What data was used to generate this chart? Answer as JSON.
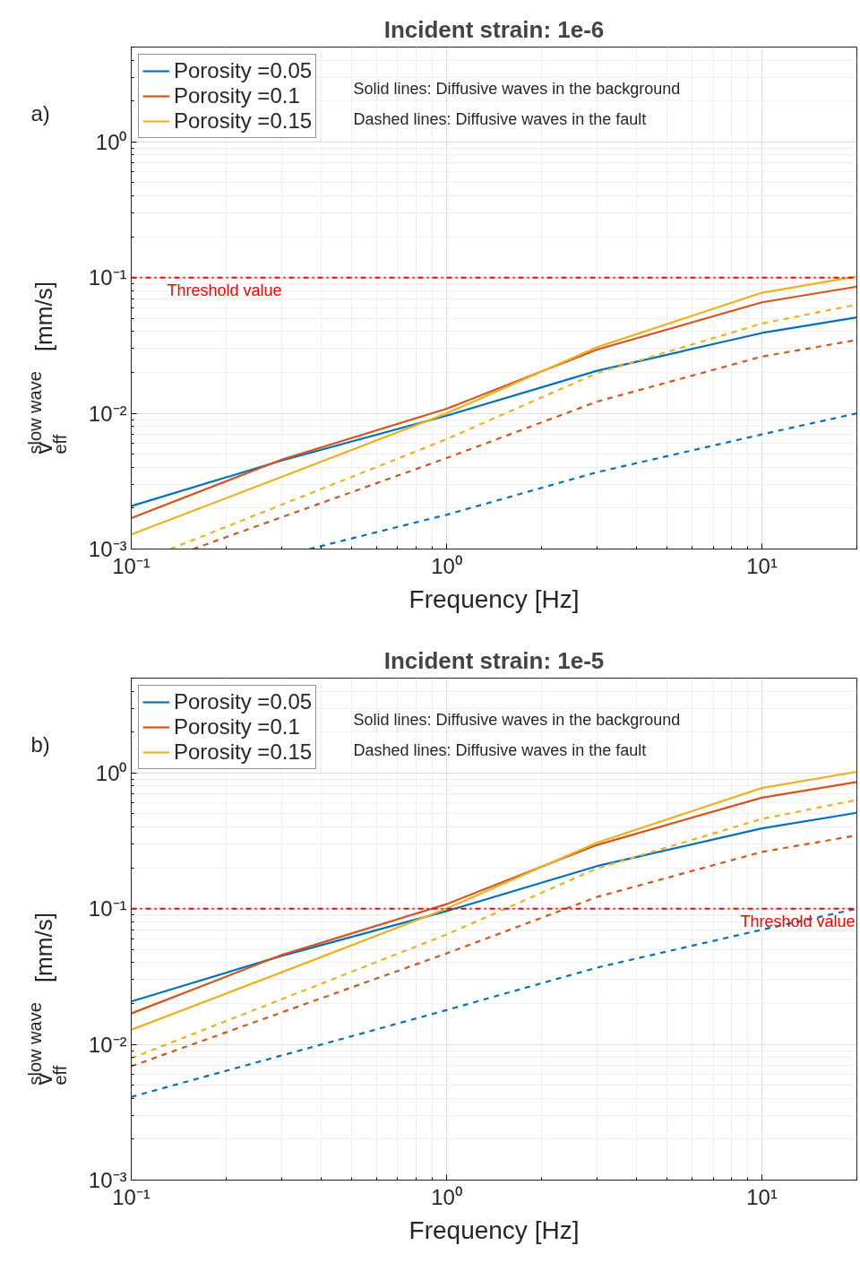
{
  "chart_data": [
    {
      "type": "line",
      "title": "Incident strain: 1e-6",
      "xlabel": "Frequency [Hz]",
      "ylabel": "v$_{eff}$$^{slow wave}$ [mm/s]",
      "xlim": [
        0.1,
        20
      ],
      "ylim": [
        0.001,
        5
      ],
      "log": "xy",
      "grid": true,
      "legend": "top left",
      "xticks": [
        {
          "value": 0.1,
          "label": "10⁻¹"
        },
        {
          "value": 1,
          "label": "10⁰"
        },
        {
          "value": 10,
          "label": "10¹"
        }
      ],
      "yticks": [
        {
          "value": 0.001,
          "label": "10⁻³"
        },
        {
          "value": 0.01,
          "label": "10⁻²"
        },
        {
          "value": 0.1,
          "label": "10⁻¹"
        },
        {
          "value": 1,
          "label": "10⁰"
        }
      ],
      "series": [
        {
          "name": "Porosity =0.05",
          "color": "#0072bd",
          "line_style": "solid",
          "x": [
            0.1,
            0.3,
            1,
            3,
            10,
            20
          ],
          "values": [
            0.00207,
            0.00449,
            0.0096,
            0.0206,
            0.0391,
            0.0509
          ]
        },
        {
          "name": "Porosity =0.1",
          "color": "#d95319",
          "line_style": "solid",
          "x": [
            0.1,
            0.3,
            1,
            3,
            10,
            20
          ],
          "values": [
            0.00169,
            0.00456,
            0.0108,
            0.0295,
            0.0658,
            0.0858
          ]
        },
        {
          "name": "Porosity =0.15",
          "color": "#edb120",
          "line_style": "solid",
          "x": [
            0.1,
            0.3,
            1,
            3,
            10,
            20
          ],
          "values": [
            0.00128,
            0.0034,
            0.01,
            0.0307,
            0.0774,
            0.102
          ]
        },
        {
          "color": "#0072bd",
          "line_style": "dashed",
          "x": [
            0.367,
            1,
            3,
            10,
            20
          ],
          "values": [
            0.001,
            0.00179,
            0.00368,
            0.007,
            0.01
          ]
        },
        {
          "color": "#d95319",
          "line_style": "dashed",
          "x": [
            0.157,
            1,
            3,
            10,
            20
          ],
          "values": [
            0.001,
            0.00468,
            0.0122,
            0.0262,
            0.0347
          ]
        },
        {
          "color": "#edb120",
          "line_style": "dashed",
          "x": [
            0.133,
            1,
            3,
            10,
            20
          ],
          "values": [
            0.001,
            0.00645,
            0.0198,
            0.0459,
            0.0633
          ]
        }
      ],
      "ref_lines": [
        {
          "axis": "y",
          "value": 0.1,
          "color": "#ff0000",
          "line_style": "dashdot",
          "label": "Threshold value"
        }
      ],
      "annotations": [
        "a)",
        "Solid lines: Diffusive waves in the background",
        "Dashed lines: Diffusive waves in the fault"
      ]
    },
    {
      "type": "line",
      "title": "Incident strain: 1e-5",
      "xlabel": "Frequency [Hz]",
      "ylabel": "v$_{eff}$$^{slow wave}$ [mm/s]",
      "xlim": [
        0.1,
        20
      ],
      "ylim": [
        0.001,
        5
      ],
      "log": "xy",
      "grid": true,
      "legend": "top left",
      "xticks": [
        {
          "value": 0.1,
          "label": "10⁻¹"
        },
        {
          "value": 1,
          "label": "10⁰"
        },
        {
          "value": 10,
          "label": "10¹"
        }
      ],
      "yticks": [
        {
          "value": 0.001,
          "label": "10⁻³"
        },
        {
          "value": 0.01,
          "label": "10⁻²"
        },
        {
          "value": 0.1,
          "label": "10⁻¹"
        },
        {
          "value": 1,
          "label": "10⁰"
        }
      ],
      "series": [
        {
          "name": "Porosity =0.05",
          "color": "#0072bd",
          "line_style": "solid",
          "x": [
            0.1,
            0.3,
            1,
            3,
            10,
            20
          ],
          "values": [
            0.0207,
            0.0449,
            0.096,
            0.206,
            0.391,
            0.509
          ]
        },
        {
          "name": "Porosity =0.1",
          "color": "#d95319",
          "line_style": "solid",
          "x": [
            0.1,
            0.3,
            1,
            3,
            10,
            20
          ],
          "values": [
            0.0169,
            0.0456,
            0.108,
            0.295,
            0.658,
            0.858
          ]
        },
        {
          "name": "Porosity =0.15",
          "color": "#edb120",
          "line_style": "solid",
          "x": [
            0.1,
            0.3,
            1,
            3,
            10,
            20
          ],
          "values": [
            0.0128,
            0.034,
            0.1,
            0.307,
            0.774,
            1.02
          ]
        },
        {
          "color": "#0072bd",
          "line_style": "dashed",
          "x": [
            0.1,
            1,
            3,
            10,
            20
          ],
          "values": [
            0.0041,
            0.0179,
            0.0368,
            0.07,
            0.1
          ]
        },
        {
          "color": "#d95319",
          "line_style": "dashed",
          "x": [
            0.1,
            1,
            3,
            10,
            20
          ],
          "values": [
            0.0069,
            0.0468,
            0.122,
            0.262,
            0.347
          ]
        },
        {
          "color": "#edb120",
          "line_style": "dashed",
          "x": [
            0.1,
            1,
            3,
            10,
            20
          ],
          "values": [
            0.0079,
            0.0645,
            0.198,
            0.459,
            0.633
          ]
        }
      ],
      "ref_lines": [
        {
          "axis": "y",
          "value": 0.1,
          "color": "#ff0000",
          "line_style": "dashdot",
          "label": "Threshold value"
        }
      ],
      "annotations": [
        "b)",
        "Solid lines: Diffusive waves in the background",
        "Dashed lines: Diffusive waves in the fault"
      ]
    }
  ]
}
